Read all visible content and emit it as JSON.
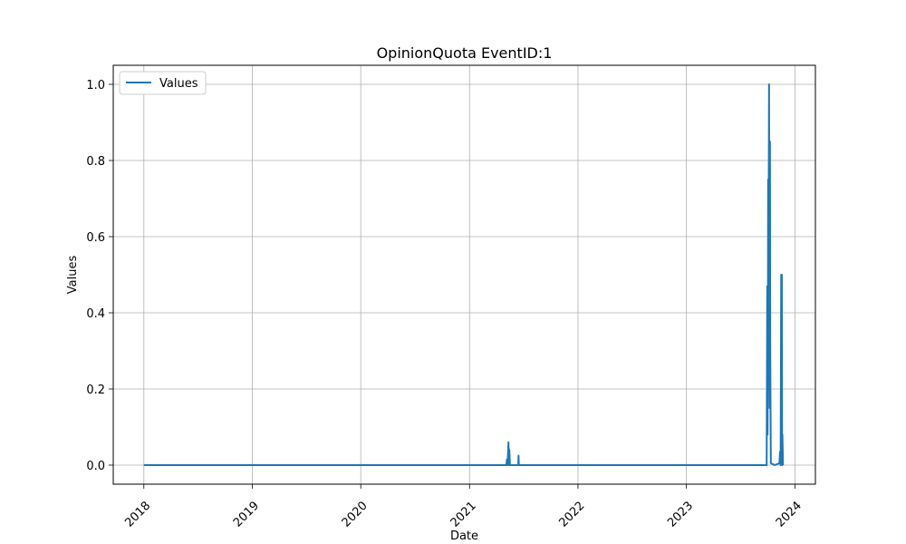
{
  "chart_data": {
    "type": "line",
    "title": "OpinionQuota EventID:1",
    "xlabel": "Date",
    "ylabel": "Values",
    "x_axis_type": "date",
    "xlim": [
      "2017-09-20",
      "2024-03-10"
    ],
    "ylim": [
      -0.05,
      1.05
    ],
    "x_ticks": [
      "2018",
      "2019",
      "2020",
      "2021",
      "2022",
      "2023",
      "2024"
    ],
    "x_tick_values": [
      "2018-01-01",
      "2019-01-01",
      "2020-01-01",
      "2021-01-01",
      "2022-01-01",
      "2023-01-01",
      "2024-01-01"
    ],
    "y_ticks": [
      "0.0",
      "0.2",
      "0.4",
      "0.6",
      "0.8",
      "1.0"
    ],
    "y_tick_values": [
      0.0,
      0.2,
      0.4,
      0.6,
      0.8,
      1.0
    ],
    "grid": true,
    "legend_position": "upper-left",
    "series": [
      {
        "name": "Values",
        "color": "#1f77b4",
        "points": [
          [
            "2018-01-01",
            0.0
          ],
          [
            "2021-05-05",
            0.0
          ],
          [
            "2021-05-07",
            0.015
          ],
          [
            "2021-05-09",
            0.0
          ],
          [
            "2021-05-12",
            0.06
          ],
          [
            "2021-05-14",
            0.0
          ],
          [
            "2021-05-15",
            0.04
          ],
          [
            "2021-05-17",
            0.0
          ],
          [
            "2021-06-14",
            0.0
          ],
          [
            "2021-06-15",
            0.025
          ],
          [
            "2021-06-16",
            0.0
          ],
          [
            "2023-09-28",
            0.0
          ],
          [
            "2023-09-30",
            0.47
          ],
          [
            "2023-10-01",
            0.08
          ],
          [
            "2023-10-02",
            0.3
          ],
          [
            "2023-10-03",
            0.75
          ],
          [
            "2023-10-04",
            0.22
          ],
          [
            "2023-10-05",
            0.72
          ],
          [
            "2023-10-06",
            1.0
          ],
          [
            "2023-10-07",
            0.5
          ],
          [
            "2023-10-08",
            0.15
          ],
          [
            "2023-10-09",
            0.85
          ],
          [
            "2023-10-10",
            0.3
          ],
          [
            "2023-10-11",
            0.15
          ],
          [
            "2023-10-12",
            0.005
          ],
          [
            "2023-10-25",
            0.0
          ],
          [
            "2023-11-10",
            0.005
          ],
          [
            "2023-11-12",
            0.035
          ],
          [
            "2023-11-14",
            0.0
          ],
          [
            "2023-11-16",
            0.5
          ],
          [
            "2023-11-18",
            0.5
          ],
          [
            "2023-11-19",
            0.0
          ],
          [
            "2023-11-20",
            0.08
          ],
          [
            "2023-11-22",
            0.0
          ]
        ]
      }
    ]
  }
}
